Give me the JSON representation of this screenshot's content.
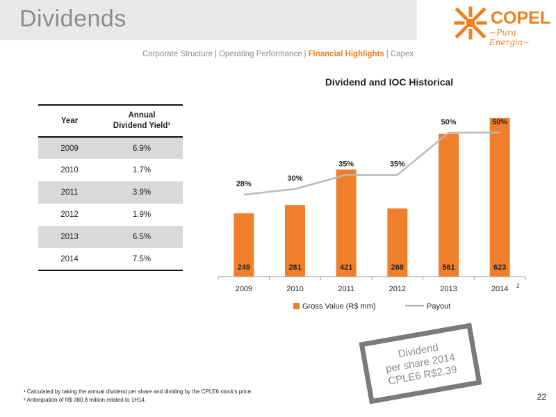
{
  "header": {
    "title": "Dividends",
    "logo_name": "COPEL",
    "logo_tagline": "Pura Energia"
  },
  "breadcrumb": [
    {
      "label": "Corporate Structure",
      "active": false
    },
    {
      "label": "Operating Performance",
      "active": false
    },
    {
      "label": "Financial Highlights",
      "active": true
    },
    {
      "label": "Capex",
      "active": false
    }
  ],
  "yield_table": {
    "headers": [
      "Year",
      "Annual Dividend Yield¹"
    ],
    "rows": [
      {
        "year": "2009",
        "value": "6.9%"
      },
      {
        "year": "2010",
        "value": "1.7%"
      },
      {
        "year": "2011",
        "value": "3.9%"
      },
      {
        "year": "2012",
        "value": "1.9%"
      },
      {
        "year": "2013",
        "value": "6.5%"
      },
      {
        "year": "2014",
        "value": "7.5%"
      }
    ]
  },
  "chart_data": {
    "type": "bar",
    "title": "Dividend and IOC Historical",
    "categories": [
      "2009",
      "2010",
      "2011",
      "2012",
      "2013",
      "2014"
    ],
    "category_notes": [
      "",
      "",
      "",
      "",
      "",
      "2"
    ],
    "series": [
      {
        "name": "Gross Value (R$ mm)",
        "type": "bar",
        "color": "#f07f2b",
        "values": [
          249,
          281,
          421,
          268,
          561,
          623
        ],
        "labels": [
          "249",
          "281",
          "421",
          "268",
          "561",
          "623"
        ]
      },
      {
        "name": "Payout",
        "type": "line",
        "color": "#b9b9b9",
        "values": [
          28,
          30,
          35,
          35,
          50,
          50
        ],
        "labels": [
          "28%",
          "30%",
          "35%",
          "35%",
          "50%",
          "50%"
        ]
      }
    ],
    "legend_position": "bottom",
    "grid": false
  },
  "stamp": {
    "lines": [
      "Dividend",
      "per share 2014",
      "CPLE6 R$2.39"
    ]
  },
  "footnotes": [
    "¹ Calculated by taking the annual dividend per share and dividing by the CPLE6 stock's price.",
    "² Antecipation of R$ 380.8 million related to 1H14."
  ],
  "page_number": "22",
  "colors": {
    "accent": "#f07f1e",
    "bar": "#f07f2b",
    "line": "#b9b9b9",
    "table_shade": "#d9d9d9"
  }
}
